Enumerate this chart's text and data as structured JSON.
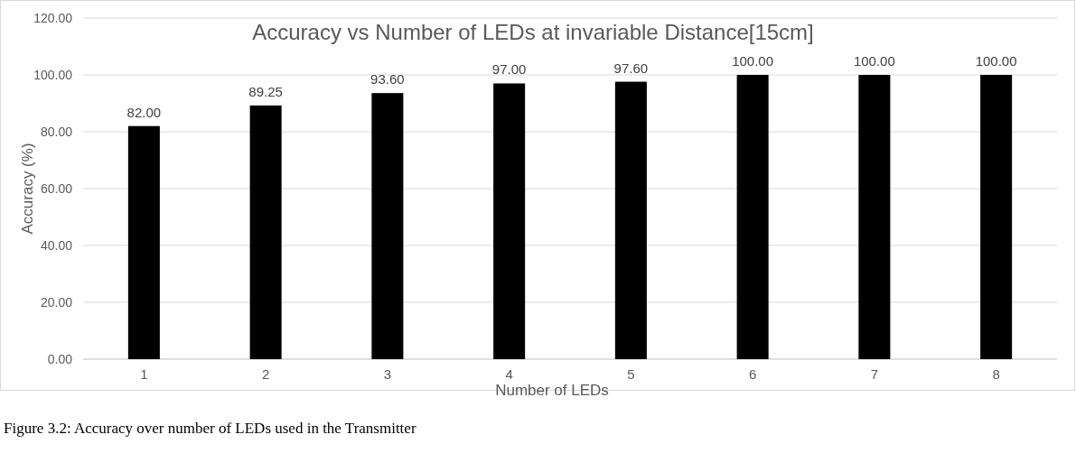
{
  "chart_data": {
    "type": "bar",
    "title": "Accuracy vs Number of LEDs at invariable Distance[15cm]",
    "xlabel": "Number of LEDs",
    "ylabel": "Accuracy (%)",
    "categories": [
      "1",
      "2",
      "3",
      "4",
      "5",
      "6",
      "7",
      "8"
    ],
    "values": [
      82.0,
      89.25,
      93.6,
      97.0,
      97.6,
      100.0,
      100.0,
      100.0
    ],
    "value_labels": [
      "82.00",
      "89.25",
      "93.60",
      "97.00",
      "97.60",
      "100.00",
      "100.00",
      "100.00"
    ],
    "color": "#000000",
    "ylim": [
      0,
      120
    ],
    "yticks": [
      {
        "value": 0,
        "label": "0.00"
      },
      {
        "value": 20,
        "label": "20.00"
      },
      {
        "value": 40,
        "label": "40.00"
      },
      {
        "value": 60,
        "label": "60.00"
      },
      {
        "value": 80,
        "label": "80.00"
      },
      {
        "value": 100,
        "label": "100.00"
      },
      {
        "value": 120,
        "label": "120.00"
      }
    ],
    "grid": "y",
    "annotations": [
      "Figure 3.2: Accuracy over number of  LEDs used in the Transmitter"
    ]
  }
}
